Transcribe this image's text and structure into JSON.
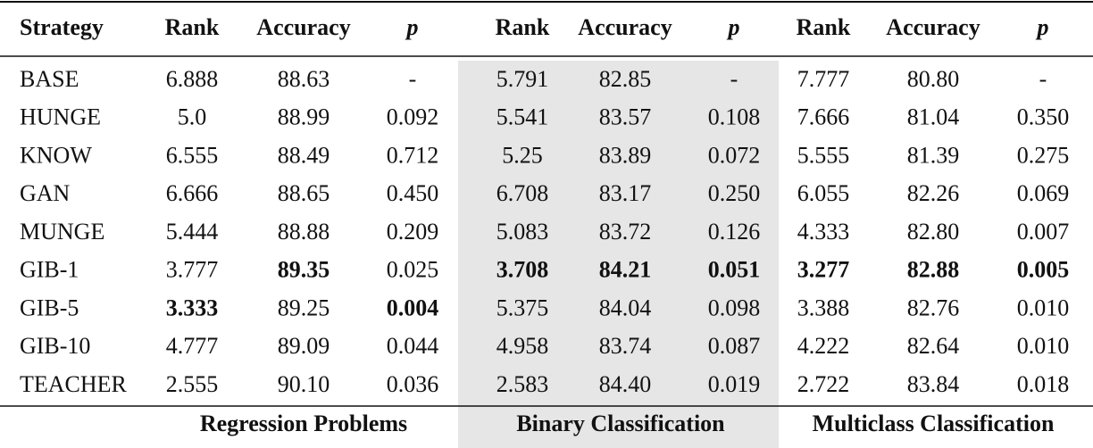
{
  "table": {
    "header": [
      "Strategy",
      "Rank",
      "Accuracy",
      "p",
      "Rank",
      "Accuracy",
      "p",
      "Rank",
      "Accuracy",
      "p"
    ],
    "rows": [
      [
        "BASE",
        "6.888",
        "88.63",
        "-",
        "5.791",
        "82.85",
        "-",
        "7.777",
        "80.80",
        "-"
      ],
      [
        "HUNGE",
        "5.0",
        "88.99",
        "0.092",
        "5.541",
        "83.57",
        "0.108",
        "7.666",
        "81.04",
        "0.350"
      ],
      [
        "KNOW",
        "6.555",
        "88.49",
        "0.712",
        "5.25",
        "83.89",
        "0.072",
        "5.555",
        "81.39",
        "0.275"
      ],
      [
        "GAN",
        "6.666",
        "88.65",
        "0.450",
        "6.708",
        "83.17",
        "0.250",
        "6.055",
        "82.26",
        "0.069"
      ],
      [
        "MUNGE",
        "5.444",
        "88.88",
        "0.209",
        "5.083",
        "83.72",
        "0.126",
        "4.333",
        "82.80",
        "0.007"
      ],
      [
        "GIB-1",
        "3.777",
        "89.35",
        "0.025",
        "3.708",
        "84.21",
        "0.051",
        "3.277",
        "82.88",
        "0.005"
      ],
      [
        "GIB-5",
        "3.333",
        "89.25",
        "0.004",
        "5.375",
        "84.04",
        "0.098",
        "3.388",
        "82.76",
        "0.010"
      ],
      [
        "GIB-10",
        "4.777",
        "89.09",
        "0.044",
        "4.958",
        "83.74",
        "0.087",
        "4.222",
        "82.64",
        "0.010"
      ],
      [
        "TEACHER",
        "2.555",
        "90.10",
        "0.036",
        "2.583",
        "84.40",
        "0.019",
        "2.722",
        "83.84",
        "0.018"
      ]
    ],
    "footer": [
      "Regression Problems",
      "Binary Classification",
      "Multiclass Classification"
    ],
    "bold_cells": [
      [
        5,
        2
      ],
      [
        5,
        4
      ],
      [
        5,
        5
      ],
      [
        5,
        6
      ],
      [
        5,
        7
      ],
      [
        5,
        8
      ],
      [
        5,
        9
      ],
      [
        6,
        1
      ],
      [
        6,
        3
      ]
    ]
  }
}
